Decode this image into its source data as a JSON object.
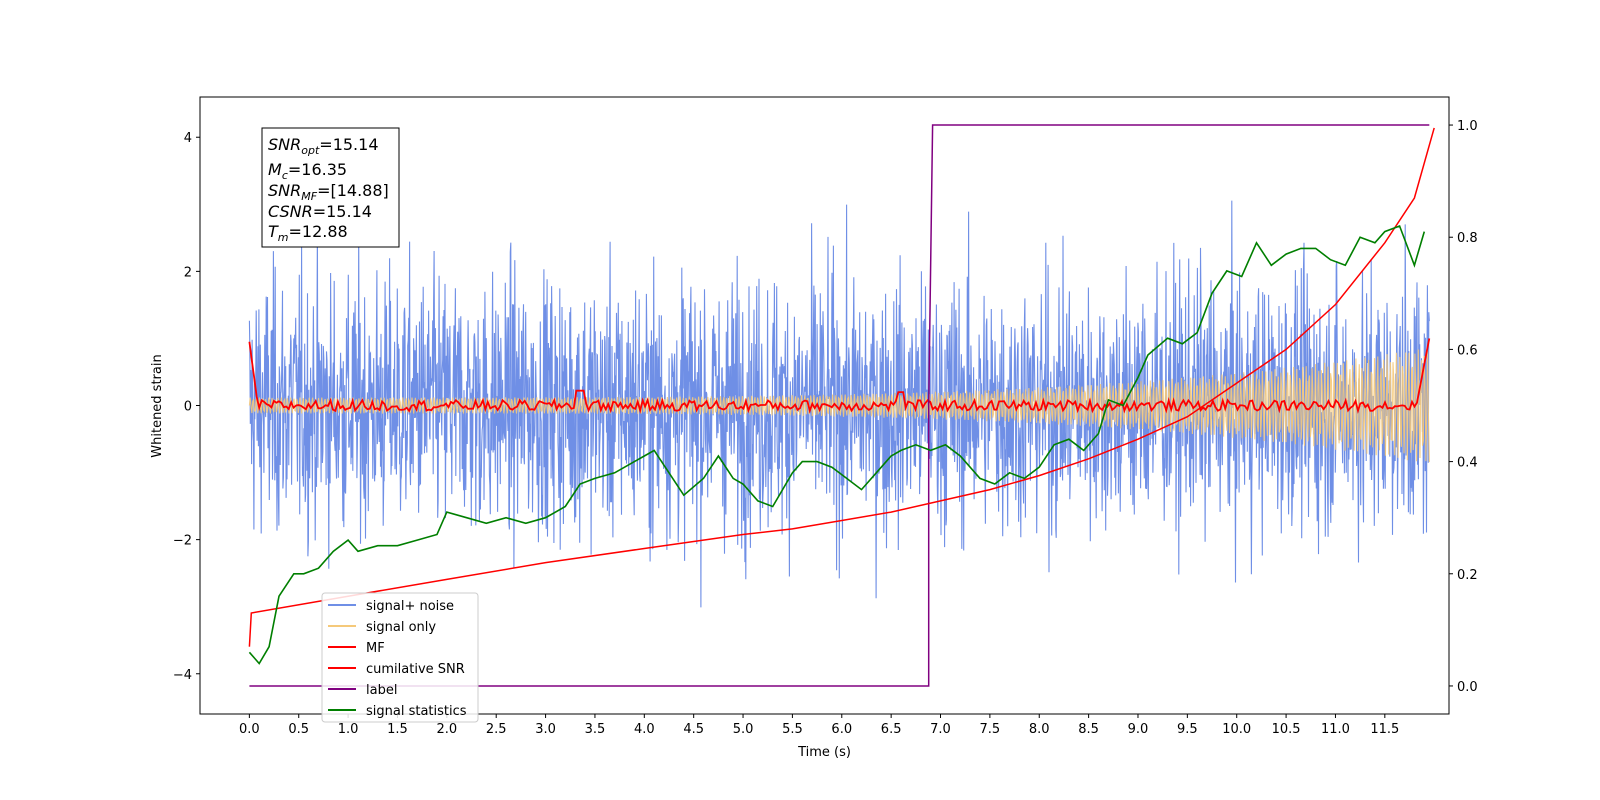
{
  "chart_data": {
    "type": "line",
    "title": "",
    "xlabel": "Time (s)",
    "ylabel": "Whitened strain",
    "xlim": [
      -0.5,
      12.15
    ],
    "ylim": [
      -4.6,
      4.6
    ],
    "y2lim": [
      -0.05,
      1.05
    ],
    "xticks": [
      "0.0",
      "0.5",
      "1.0",
      "1.5",
      "2.0",
      "2.5",
      "3.0",
      "3.5",
      "4.0",
      "4.5",
      "5.0",
      "5.5",
      "6.0",
      "6.5",
      "7.0",
      "7.5",
      "8.0",
      "8.5",
      "9.0",
      "9.5",
      "10.0",
      "10.5",
      "11.0",
      "11.5"
    ],
    "yticks": [
      "4",
      "2",
      "0",
      "−2",
      "−4"
    ],
    "y2ticks": [
      "1.0",
      "0.8",
      "0.6",
      "0.4",
      "0.2",
      "0.0"
    ],
    "legend_position": "lower-left",
    "legend": [
      {
        "label": "signal+ noise",
        "color": "#6f8fe6"
      },
      {
        "label": "signal only",
        "color": "#f5c97a"
      },
      {
        "label": "MF",
        "color": "#ff0000"
      },
      {
        "label": "cumilative SNR",
        "color": "#ff0000"
      },
      {
        "label": "label",
        "color": "#800080"
      },
      {
        "label": "signal statistics",
        "color": "#007f00"
      }
    ],
    "annotation": {
      "snr_opt": {
        "base": "SNR",
        "sub": "opt",
        "value": "=15.14"
      },
      "mc": {
        "base": "M",
        "sub": "c",
        "value": "=16.35"
      },
      "snr_mf": {
        "base": "SNR",
        "sub": "MF",
        "value": "=[14.88]"
      },
      "csnr": {
        "base": "CSNR",
        "sub": "",
        "value": "=15.14"
      },
      "tm": {
        "base": "T",
        "sub": "m",
        "value": "=12.88"
      }
    },
    "series": [
      {
        "name": "label",
        "axis": "right",
        "x": [
          0.0,
          6.88,
          6.88,
          6.92,
          6.92,
          11.95
        ],
        "y": [
          0.0,
          0.0,
          0.5,
          1.0,
          1.0,
          1.0
        ]
      },
      {
        "name": "cumilative SNR",
        "axis": "right",
        "x": [
          0.0,
          0.02,
          1.0,
          2.0,
          3.0,
          4.0,
          5.0,
          5.5,
          6.0,
          6.5,
          7.0,
          7.5,
          8.0,
          8.5,
          9.0,
          9.5,
          10.0,
          10.5,
          11.0,
          11.5,
          11.8,
          12.0
        ],
        "y": [
          0.07,
          0.13,
          0.16,
          0.19,
          0.22,
          0.245,
          0.27,
          0.28,
          0.295,
          0.31,
          0.33,
          0.35,
          0.375,
          0.405,
          0.44,
          0.48,
          0.54,
          0.6,
          0.68,
          0.79,
          0.87,
          0.995
        ]
      },
      {
        "name": "signal statistics",
        "axis": "right",
        "x": [
          0.0,
          0.1,
          0.2,
          0.3,
          0.45,
          0.55,
          0.7,
          0.85,
          1.0,
          1.1,
          1.3,
          1.5,
          1.7,
          1.9,
          2.0,
          2.2,
          2.4,
          2.6,
          2.8,
          3.0,
          3.2,
          3.35,
          3.5,
          3.7,
          3.9,
          4.0,
          4.1,
          4.25,
          4.4,
          4.6,
          4.75,
          4.9,
          5.0,
          5.15,
          5.3,
          5.5,
          5.6,
          5.75,
          5.9,
          6.05,
          6.2,
          6.35,
          6.5,
          6.6,
          6.75,
          6.9,
          7.05,
          7.2,
          7.4,
          7.55,
          7.7,
          7.85,
          8.0,
          8.15,
          8.3,
          8.45,
          8.6,
          8.7,
          8.85,
          9.0,
          9.1,
          9.3,
          9.45,
          9.6,
          9.75,
          9.9,
          10.05,
          10.2,
          10.35,
          10.5,
          10.65,
          10.8,
          10.95,
          11.1,
          11.25,
          11.4,
          11.5,
          11.65,
          11.8,
          11.9
        ],
        "y": [
          0.06,
          0.04,
          0.07,
          0.16,
          0.2,
          0.2,
          0.21,
          0.24,
          0.26,
          0.24,
          0.25,
          0.25,
          0.26,
          0.27,
          0.31,
          0.3,
          0.29,
          0.3,
          0.29,
          0.3,
          0.32,
          0.36,
          0.37,
          0.38,
          0.4,
          0.41,
          0.42,
          0.38,
          0.34,
          0.37,
          0.41,
          0.37,
          0.36,
          0.33,
          0.32,
          0.38,
          0.4,
          0.4,
          0.39,
          0.37,
          0.35,
          0.38,
          0.41,
          0.42,
          0.43,
          0.42,
          0.43,
          0.41,
          0.37,
          0.36,
          0.38,
          0.37,
          0.39,
          0.43,
          0.44,
          0.42,
          0.45,
          0.51,
          0.5,
          0.55,
          0.59,
          0.62,
          0.61,
          0.63,
          0.7,
          0.74,
          0.73,
          0.79,
          0.75,
          0.77,
          0.78,
          0.78,
          0.76,
          0.75,
          0.8,
          0.79,
          0.81,
          0.82,
          0.75,
          0.81
        ]
      }
    ]
  }
}
